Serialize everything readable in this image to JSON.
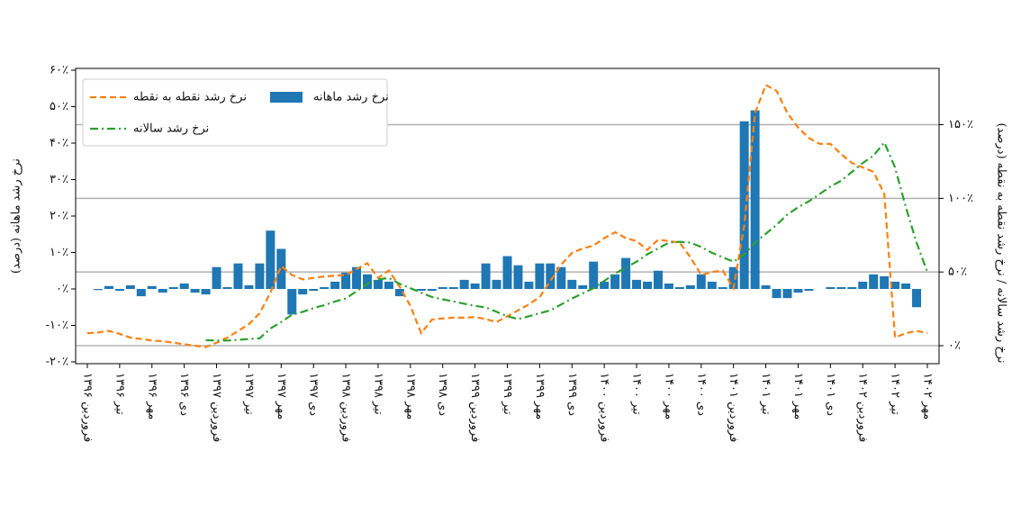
{
  "chart_data": {
    "type": "bar_line_dual",
    "y_label": "نرخ رشد ماهانه (درصد)",
    "y2_label": "نرخ رشد سالانه / نرخ رشد نقطه به نقطه (درصد)",
    "categories": [
      "فروردین ۱۳۹۶",
      null,
      null,
      "تیر ۱۳۹۶",
      null,
      null,
      "مهر ۱۳۹۶",
      null,
      null,
      "دی ۱۳۹۶",
      null,
      null,
      "فروردین ۱۳۹۷",
      null,
      null,
      "تیر ۱۳۹۷",
      null,
      null,
      "مهر ۱۳۹۷",
      null,
      null,
      "دی ۱۳۹۷",
      null,
      null,
      "فروردین ۱۳۹۸",
      null,
      null,
      "تیر ۱۳۹۸",
      null,
      null,
      "مهر ۱۳۹۸",
      null,
      null,
      "دی ۱۳۹۸",
      null,
      null,
      "فروردین ۱۳۹۹",
      null,
      null,
      "تیر ۱۳۹۹",
      null,
      null,
      "مهر ۱۳۹۹",
      null,
      null,
      "دی ۱۳۹۹",
      null,
      null,
      "فروردین ۱۴۰۰",
      null,
      null,
      "تیر ۱۴۰۰",
      null,
      null,
      "مهر ۱۴۰۰",
      null,
      null,
      "دی ۱۴۰۰",
      null,
      null,
      "فروردین ۱۴۰۱",
      null,
      null,
      "تیر ۱۴۰۱",
      null,
      null,
      "مهر ۱۴۰۱",
      null,
      null,
      "دی ۱۴۰۱",
      null,
      null,
      "فروردین ۱۴۰۲",
      null,
      null,
      "تیر ۱۴۰۲",
      null,
      null,
      "مهر ۱۴۰۲"
    ],
    "series": [
      {
        "name": "نرخ رشد ماهانه",
        "kind": "bar",
        "axis": "y",
        "color": "#1f77b4",
        "values": [
          0,
          -0.3,
          0.8,
          -0.5,
          1,
          -2,
          0.8,
          -1,
          0.5,
          1.5,
          -1,
          -1.5,
          6,
          0.5,
          7,
          1,
          7,
          16,
          11,
          -7,
          -1.5,
          -0.5,
          0.5,
          2,
          4.5,
          6,
          4,
          2.5,
          2,
          -2,
          0,
          -0.5,
          -0.5,
          0.5,
          0.5,
          2.5,
          1.5,
          7,
          2.5,
          9,
          6.5,
          2,
          7,
          7,
          6,
          2.5,
          1,
          7.5,
          2,
          4,
          8.5,
          2.5,
          2,
          5,
          1.5,
          0.5,
          1,
          4,
          2,
          0.5,
          6,
          46,
          49,
          1,
          -2.5,
          -2.5,
          -1,
          -0.5,
          0,
          0.5,
          0.5,
          0.5,
          2,
          4,
          3.5,
          2,
          1.5,
          -5,
          null
        ]
      },
      {
        "name": "نرخ رشد نقطه به نقطه",
        "kind": "dashed",
        "axis": "y2",
        "color": "#ff7f0e",
        "values": [
          8.5,
          9,
          10,
          8,
          5.5,
          4.5,
          3.5,
          3,
          2,
          1,
          0,
          -1,
          2,
          5.5,
          10,
          14.6,
          22,
          36,
          54,
          48,
          45,
          46,
          47,
          47.5,
          48,
          52,
          56,
          46,
          51,
          40,
          27,
          8.5,
          17.7,
          18.5,
          19,
          19,
          19.5,
          18,
          16,
          20,
          24,
          28,
          33,
          44,
          55,
          63,
          66,
          68,
          73,
          77,
          73,
          71,
          65,
          72,
          71,
          70,
          60,
          48,
          50,
          51,
          39,
          82,
          158,
          177,
          173,
          158,
          148,
          141,
          137,
          137,
          130,
          124,
          121,
          118,
          103,
          5.5,
          8.5,
          10,
          8.5
        ]
      },
      {
        "name": "نرخ رشد سالانه",
        "kind": "dashdot",
        "axis": "y2",
        "color": "#2ca02c",
        "values": [
          null,
          null,
          null,
          null,
          null,
          null,
          null,
          null,
          null,
          null,
          null,
          3.7,
          3.5,
          3.5,
          4,
          4.5,
          5,
          11.6,
          16,
          21,
          23,
          25.5,
          27.5,
          30,
          32,
          37,
          42,
          45,
          46,
          42,
          39,
          36,
          33,
          31.5,
          30,
          28.5,
          27,
          26,
          23,
          20,
          18,
          20,
          22,
          24,
          28,
          32,
          35.5,
          39,
          44,
          49,
          53,
          57,
          62,
          66,
          70,
          70.5,
          70,
          67,
          63,
          60,
          57,
          62,
          70,
          76,
          82,
          89,
          94,
          98,
          103,
          108,
          112,
          118,
          124,
          129,
          138,
          121,
          94,
          70,
          50
        ]
      }
    ],
    "ylim": [
      -20,
      60
    ],
    "yticks": [
      {
        "value": -20,
        "label": "-۲۰٪"
      },
      {
        "value": -10,
        "label": "-۱۰٪"
      },
      {
        "value": 0,
        "label": "۰٪"
      },
      {
        "value": 10,
        "label": "۱۰٪"
      },
      {
        "value": 20,
        "label": "۲۰٪"
      },
      {
        "value": 30,
        "label": "۳۰٪"
      },
      {
        "value": 40,
        "label": "۴۰٪"
      },
      {
        "value": 50,
        "label": "۵۰٪"
      },
      {
        "value": 60,
        "label": "۶۰٪"
      }
    ],
    "y2lim": [
      -11,
      187
    ],
    "y2ticks": [
      {
        "value": 0,
        "label": "۰٪"
      },
      {
        "value": 50,
        "label": "۵۰٪"
      },
      {
        "value": 100,
        "label": "۱۰۰٪"
      },
      {
        "value": 150,
        "label": "۱۵۰٪"
      }
    ],
    "grid": "y2",
    "legend": "upper left"
  }
}
